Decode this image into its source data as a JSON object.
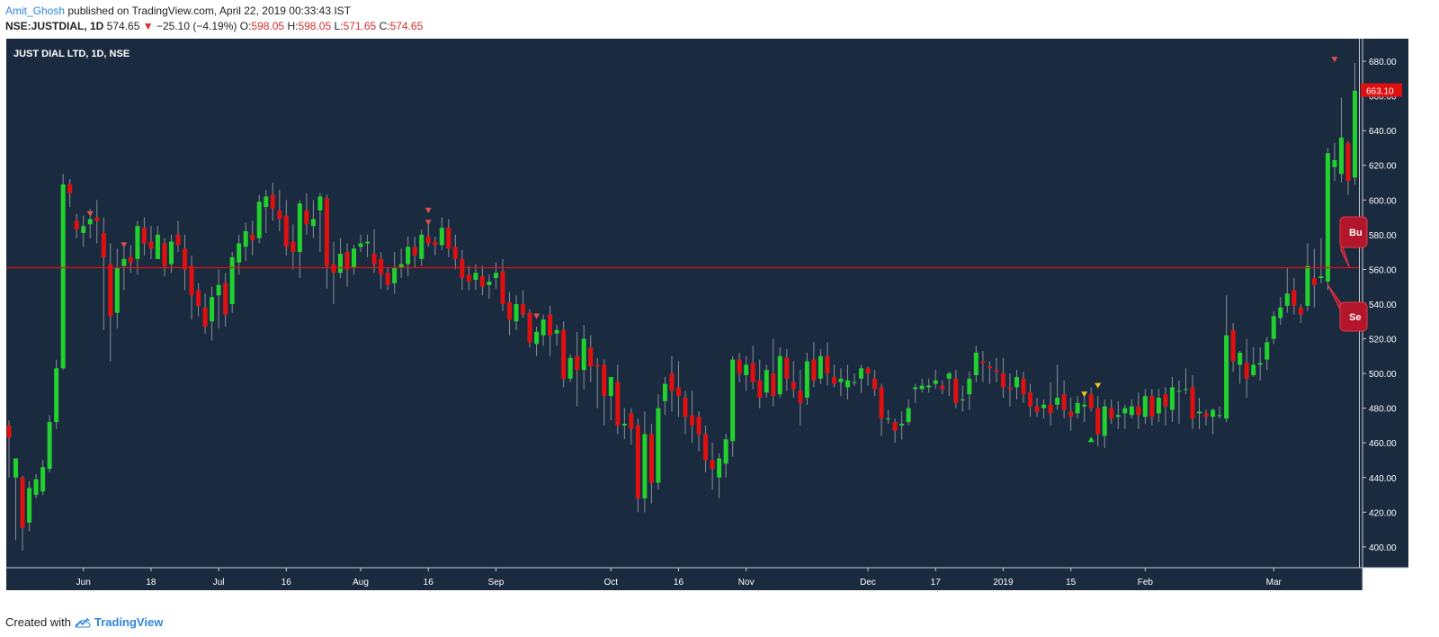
{
  "header": {
    "author": "Amit_Ghosh",
    "published": " published on TradingView.com, April 22, 2019 00:33:43 IST"
  },
  "ohlc": {
    "symbol": "NSE:JUSTDIAL, 1D",
    "last": "574.65",
    "change_arrow": "▼",
    "change": "−25.10 (−4.19%)",
    "open_label": "O:",
    "open": "598.05",
    "high_label": "H:",
    "high": "598.05",
    "low_label": "L:",
    "low": "571.65",
    "close_label": "C:",
    "close": "574.65"
  },
  "footer": {
    "created_with": "Created with",
    "brand": "TradingView",
    "logo_icon": "tradingview-cloud-icon"
  },
  "chart_data": {
    "type": "candlestick",
    "title": "JUST DIAL LTD, 1D, NSE",
    "ylim": [
      388,
      693
    ],
    "yticks": [
      "400.00",
      "420.00",
      "440.00",
      "460.00",
      "480.00",
      "500.00",
      "520.00",
      "540.00",
      "560.00",
      "580.00",
      "600.00",
      "620.00",
      "640.00",
      "660.00",
      "680.00"
    ],
    "xticks": [
      {
        "label": "Jun",
        "bar": 11
      },
      {
        "label": "18",
        "bar": 21
      },
      {
        "label": "Jul",
        "bar": 31
      },
      {
        "label": "16",
        "bar": 41
      },
      {
        "label": "Aug",
        "bar": 52
      },
      {
        "label": "16",
        "bar": 62
      },
      {
        "label": "Sep",
        "bar": 72
      },
      {
        "label": "Oct",
        "bar": 89
      },
      {
        "label": "16",
        "bar": 99
      },
      {
        "label": "Nov",
        "bar": 109
      },
      {
        "label": "Dec",
        "bar": 127
      },
      {
        "label": "17",
        "bar": 137
      },
      {
        "label": "2019",
        "bar": 147
      },
      {
        "label": "15",
        "bar": 157
      },
      {
        "label": "Feb",
        "bar": 168
      },
      {
        "label": "Mar",
        "bar": 187
      }
    ],
    "horizontal_line": 561,
    "last_price_label": "663.10",
    "callouts": [
      "Bu",
      "Se"
    ],
    "colors": {
      "up": "#22d12e",
      "down": "#e01010",
      "background": "#1b2b3f",
      "hline": "#e01010",
      "marker_red": "#e0504d",
      "marker_yellow": "#f0c419",
      "marker_green": "#22d12e"
    },
    "markers": [
      {
        "bar": 12,
        "value": 592,
        "shape": "down",
        "color": "red"
      },
      {
        "bar": 17,
        "value": 574,
        "shape": "down",
        "color": "red"
      },
      {
        "bar": 62,
        "value": 594,
        "shape": "down",
        "color": "red"
      },
      {
        "bar": 62,
        "value": 587,
        "shape": "down",
        "color": "red"
      },
      {
        "bar": 78,
        "value": 533,
        "shape": "down",
        "color": "red"
      },
      {
        "bar": 159,
        "value": 488,
        "shape": "down",
        "color": "yellow"
      },
      {
        "bar": 161,
        "value": 493,
        "shape": "down",
        "color": "yellow"
      },
      {
        "bar": 160,
        "value": 462,
        "shape": "up",
        "color": "green"
      },
      {
        "bar": 196,
        "value": 681,
        "shape": "down",
        "color": "red"
      }
    ],
    "candles": [
      [
        470,
        463,
        473,
        440
      ],
      [
        440,
        451,
        451,
        404
      ],
      [
        440,
        411,
        441,
        398
      ],
      [
        414,
        434,
        438,
        409
      ],
      [
        430,
        439,
        442,
        428
      ],
      [
        432,
        446,
        450,
        430
      ],
      [
        445,
        472,
        476,
        443
      ],
      [
        472,
        503,
        508,
        468
      ],
      [
        503,
        609,
        615,
        502
      ],
      [
        609,
        604,
        612,
        596
      ],
      [
        588,
        583,
        592,
        578
      ],
      [
        581,
        585,
        591,
        573
      ],
      [
        586,
        589,
        595,
        578
      ],
      [
        590,
        588,
        600,
        575
      ],
      [
        581,
        567,
        590,
        525
      ],
      [
        563,
        533,
        575,
        507
      ],
      [
        535,
        561,
        572,
        526
      ],
      [
        562,
        566,
        574,
        548
      ],
      [
        567,
        564,
        574,
        558
      ],
      [
        566,
        585,
        588,
        557
      ],
      [
        584,
        575,
        590,
        568
      ],
      [
        576,
        572,
        585,
        566
      ],
      [
        566,
        580,
        585,
        566
      ],
      [
        575,
        562,
        578,
        556
      ],
      [
        563,
        576,
        580,
        558
      ],
      [
        580,
        574,
        588,
        570
      ],
      [
        572,
        560,
        580,
        548
      ],
      [
        562,
        545,
        568,
        531
      ],
      [
        548,
        539,
        552,
        533
      ],
      [
        538,
        527,
        546,
        523
      ],
      [
        530,
        544,
        550,
        519
      ],
      [
        545,
        551,
        560,
        526
      ],
      [
        552,
        534,
        558,
        527
      ],
      [
        540,
        567,
        570,
        535
      ],
      [
        564,
        575,
        580,
        557
      ],
      [
        573,
        582,
        587,
        565
      ],
      [
        580,
        577,
        588,
        568
      ],
      [
        578,
        599,
        603,
        575
      ],
      [
        596,
        602,
        606,
        581
      ],
      [
        603,
        595,
        610,
        588
      ],
      [
        594,
        589,
        606,
        582
      ],
      [
        591,
        573,
        600,
        568
      ],
      [
        576,
        570,
        586,
        560
      ],
      [
        570,
        598,
        600,
        555
      ],
      [
        594,
        586,
        604,
        580
      ],
      [
        585,
        589,
        600,
        578
      ],
      [
        594,
        602,
        604,
        570
      ],
      [
        601,
        562,
        603,
        549
      ],
      [
        563,
        558,
        576,
        540
      ],
      [
        558,
        569,
        578,
        555
      ],
      [
        570,
        560,
        575,
        550
      ],
      [
        561,
        572,
        574,
        557
      ],
      [
        573,
        575,
        580,
        570
      ],
      [
        575,
        576,
        580,
        567
      ],
      [
        569,
        563,
        583,
        558
      ],
      [
        566,
        557,
        570,
        549
      ],
      [
        558,
        551,
        561,
        548
      ],
      [
        552,
        561,
        570,
        546
      ],
      [
        561,
        563,
        572,
        555
      ],
      [
        563,
        573,
        579,
        556
      ],
      [
        573,
        568,
        579,
        561
      ],
      [
        566,
        580,
        583,
        562
      ],
      [
        579,
        575,
        588,
        573
      ],
      [
        576,
        574,
        579,
        568
      ],
      [
        574,
        584,
        590,
        571
      ],
      [
        584,
        572,
        589,
        567
      ],
      [
        573,
        566,
        580,
        560
      ],
      [
        566,
        555,
        571,
        548
      ],
      [
        557,
        553,
        562,
        548
      ],
      [
        554,
        558,
        563,
        548
      ],
      [
        556,
        550,
        562,
        545
      ],
      [
        551,
        553,
        557,
        543
      ],
      [
        555,
        558,
        564,
        549
      ],
      [
        559,
        540,
        566,
        536
      ],
      [
        541,
        531,
        547,
        522
      ],
      [
        530,
        540,
        545,
        525
      ],
      [
        540,
        534,
        548,
        532
      ],
      [
        535,
        518,
        537,
        515
      ],
      [
        517,
        524,
        527,
        510
      ],
      [
        522,
        531,
        534,
        516
      ],
      [
        534,
        522,
        539,
        510
      ],
      [
        523,
        525,
        528,
        516
      ],
      [
        525,
        497,
        530,
        492
      ],
      [
        497,
        509,
        511,
        495
      ],
      [
        510,
        502,
        524,
        481
      ],
      [
        502,
        520,
        528,
        491
      ],
      [
        515,
        504,
        522,
        495
      ],
      [
        505,
        504,
        509,
        480
      ],
      [
        505,
        487,
        508,
        470
      ],
      [
        487,
        498,
        498,
        473
      ],
      [
        495,
        470,
        505,
        465
      ],
      [
        470,
        471,
        480,
        462
      ],
      [
        477,
        468,
        480,
        459
      ],
      [
        470,
        428,
        474,
        420
      ],
      [
        428,
        465,
        478,
        420
      ],
      [
        465,
        437,
        471,
        425
      ],
      [
        437,
        480,
        488,
        433
      ],
      [
        484,
        494,
        498,
        476
      ],
      [
        500,
        490,
        510,
        478
      ],
      [
        492,
        487,
        507,
        475
      ],
      [
        486,
        475,
        490,
        465
      ],
      [
        476,
        470,
        490,
        460
      ],
      [
        475,
        465,
        478,
        455
      ],
      [
        465,
        450,
        470,
        443
      ],
      [
        450,
        445,
        460,
        433
      ],
      [
        440,
        451,
        454,
        428
      ],
      [
        448,
        462,
        465,
        440
      ],
      [
        461,
        508,
        510,
        452
      ],
      [
        508,
        500,
        512,
        495
      ],
      [
        499,
        505,
        510,
        490
      ],
      [
        506,
        495,
        516,
        491
      ],
      [
        496,
        486,
        508,
        480
      ],
      [
        489,
        502,
        505,
        486
      ],
      [
        500,
        487,
        520,
        481
      ],
      [
        488,
        510,
        515,
        486
      ],
      [
        509,
        497,
        514,
        490
      ],
      [
        495,
        491,
        507,
        486
      ],
      [
        490,
        483,
        502,
        470
      ],
      [
        486,
        507,
        512,
        482
      ],
      [
        508,
        496,
        518,
        492
      ],
      [
        497,
        510,
        514,
        494
      ],
      [
        510,
        500,
        518,
        493
      ],
      [
        498,
        494,
        505,
        492
      ],
      [
        495,
        497,
        503,
        487
      ],
      [
        492,
        496,
        505,
        485
      ],
      [
        495,
        495,
        500,
        493
      ],
      [
        497,
        503,
        505,
        489
      ],
      [
        503,
        500,
        504,
        493
      ],
      [
        497,
        491,
        502,
        487
      ],
      [
        492,
        474,
        494,
        464
      ],
      [
        474,
        474,
        479,
        471
      ],
      [
        472,
        467,
        474,
        460
      ],
      [
        470,
        471,
        478,
        462
      ],
      [
        472,
        480,
        485,
        470
      ],
      [
        491,
        492,
        494,
        483
      ],
      [
        491,
        493,
        497,
        489
      ],
      [
        492,
        493,
        497,
        489
      ],
      [
        494,
        496,
        502,
        491
      ],
      [
        493,
        491,
        496,
        488
      ],
      [
        497,
        500,
        501,
        487
      ],
      [
        497,
        483,
        502,
        480
      ],
      [
        485,
        485,
        493,
        478
      ],
      [
        488,
        497,
        501,
        479
      ],
      [
        499,
        512,
        516,
        495
      ],
      [
        507,
        506,
        513,
        495
      ],
      [
        504,
        503,
        507,
        494
      ],
      [
        502,
        501,
        509,
        495
      ],
      [
        500,
        492,
        509,
        486
      ],
      [
        492,
        491,
        500,
        481
      ],
      [
        492,
        498,
        502,
        485
      ],
      [
        497,
        488,
        501,
        483
      ],
      [
        489,
        481,
        494,
        475
      ],
      [
        481,
        478,
        486,
        475
      ],
      [
        480,
        482,
        485,
        474
      ],
      [
        482,
        477,
        495,
        470
      ],
      [
        482,
        486,
        505,
        479
      ],
      [
        488,
        479,
        496,
        474
      ],
      [
        478,
        475,
        486,
        467
      ],
      [
        477,
        483,
        487,
        474
      ],
      [
        481,
        482,
        489,
        472
      ],
      [
        488,
        480,
        492,
        478
      ],
      [
        480,
        465,
        487,
        458
      ],
      [
        464,
        481,
        485,
        457
      ],
      [
        480,
        474,
        485,
        471
      ],
      [
        475,
        476,
        484,
        468
      ],
      [
        477,
        480,
        482,
        468
      ],
      [
        476,
        481,
        485,
        474
      ],
      [
        481,
        476,
        489,
        468
      ],
      [
        475,
        487,
        491,
        471
      ],
      [
        487,
        475,
        491,
        470
      ],
      [
        477,
        486,
        491,
        472
      ],
      [
        488,
        481,
        492,
        470
      ],
      [
        479,
        492,
        498,
        472
      ],
      [
        490,
        490,
        496,
        471
      ],
      [
        491,
        491,
        503,
        488
      ],
      [
        492,
        474,
        499,
        468
      ],
      [
        477,
        478,
        486,
        468
      ],
      [
        477,
        475,
        479,
        470
      ],
      [
        475,
        479,
        480,
        465
      ],
      [
        476,
        476,
        481,
        474
      ],
      [
        474,
        522,
        545,
        472
      ],
      [
        525,
        507,
        529,
        501
      ],
      [
        505,
        512,
        513,
        494
      ],
      [
        506,
        497,
        520,
        486
      ],
      [
        499,
        505,
        515,
        498
      ],
      [
        505,
        506,
        515,
        496
      ],
      [
        508,
        518,
        521,
        502
      ],
      [
        520,
        533,
        536,
        517
      ],
      [
        532,
        538,
        544,
        528
      ],
      [
        539,
        546,
        561,
        535
      ],
      [
        548,
        539,
        555,
        534
      ],
      [
        538,
        534,
        540,
        529
      ],
      [
        539,
        562,
        575,
        536
      ],
      [
        555,
        551,
        572,
        538
      ],
      [
        555,
        556,
        578,
        552
      ],
      [
        553,
        627,
        630,
        548
      ],
      [
        619,
        623,
        633,
        611
      ],
      [
        615,
        636,
        659,
        610
      ],
      [
        633,
        611,
        634,
        603
      ],
      [
        613,
        663,
        679,
        609
      ]
    ]
  }
}
